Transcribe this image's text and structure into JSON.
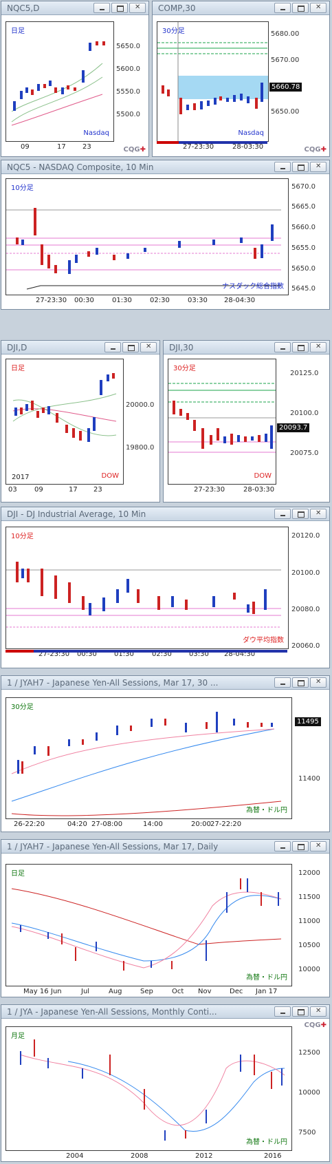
{
  "panels": [
    {
      "id": "nqc5d",
      "title": "NQC5,D",
      "period": "日足",
      "note": "Nasdaq",
      "yticks": [
        "5650.0",
        "5600.0",
        "5550.0",
        "5500.0"
      ],
      "xticks": [
        "09",
        "17",
        "23"
      ],
      "colors": {
        "up": "#1f3fbf",
        "down": "#cc2222"
      }
    },
    {
      "id": "comp30",
      "title": "COMP,30",
      "period": "30分足",
      "note": "Nasdaq",
      "yticks": [
        "5680.00",
        "5670.00",
        "5650.00"
      ],
      "price": "5660.78",
      "xticks": [
        "27-23:30",
        "28-03:30"
      ]
    },
    {
      "id": "nqc5-10",
      "title": "NQC5 - NASDAQ Composite, 10 Min",
      "period": "10分足",
      "note": "ナスダック総合指数",
      "yticks": [
        "5670.0",
        "5665.0",
        "5660.0",
        "5655.0",
        "5650.0",
        "5645.0"
      ],
      "xticks": [
        "27-23:30",
        "00:30",
        "01:30",
        "02:30",
        "03:30",
        "28-04:30"
      ]
    },
    {
      "id": "djid",
      "title": "DJI,D",
      "period": "日足",
      "note": "DOW",
      "year": "2017",
      "yticks": [
        "20000.0",
        "19800.0"
      ],
      "xticks": [
        "03",
        "09",
        "17",
        "23"
      ]
    },
    {
      "id": "dji30",
      "title": "DJI,30",
      "period": "30分足",
      "note": "DOW",
      "yticks": [
        "20125.0",
        "20100.0",
        "20075.0"
      ],
      "price": "20093.7",
      "xticks": [
        "27-23:30",
        "28-03:30"
      ]
    },
    {
      "id": "dji10",
      "title": "DJI - DJ Industrial Average, 10 Min",
      "period": "10分足",
      "note": "ダウ平均指数",
      "yticks": [
        "20120.0",
        "20100.0",
        "20080.0",
        "20060.0"
      ],
      "xticks": [
        "27-23:30",
        "00:30",
        "01:30",
        "02:30",
        "03:30",
        "28-04:30"
      ]
    },
    {
      "id": "jyah7-30",
      "title": "1 / JYAH7 - Japanese Yen-All Sessions, Mar 17, 30 ...",
      "period": "30分足",
      "note": "為替・ドル円",
      "yticks": [
        "11400"
      ],
      "price": "11495",
      "xticks": [
        "26-22:20",
        "04:20",
        "27-08:00",
        "14:00",
        "20:00",
        "27-22:20"
      ]
    },
    {
      "id": "jyah7-d",
      "title": "1 / JYAH7 - Japanese Yen-All Sessions, Mar 17, Daily",
      "period": "日足",
      "note": "為替・ドル円",
      "yticks": [
        "12000",
        "11500",
        "11000",
        "10500",
        "10000"
      ],
      "xticks": [
        "May 16",
        "Jun",
        "Jul",
        "Aug",
        "Sep",
        "Oct",
        "Nov",
        "Dec",
        "Jan 17"
      ]
    },
    {
      "id": "jya-m",
      "title": "1 / JYA - Japanese Yen-All Sessions, Monthly Conti...",
      "period": "月足",
      "note": "為替・ドル円",
      "yticks": [
        "12500",
        "10000",
        "7500"
      ],
      "xticks": [
        "2004",
        "2008",
        "2012",
        "2016"
      ]
    }
  ],
  "logo": {
    "text": "CQG",
    "mark": "✚"
  }
}
